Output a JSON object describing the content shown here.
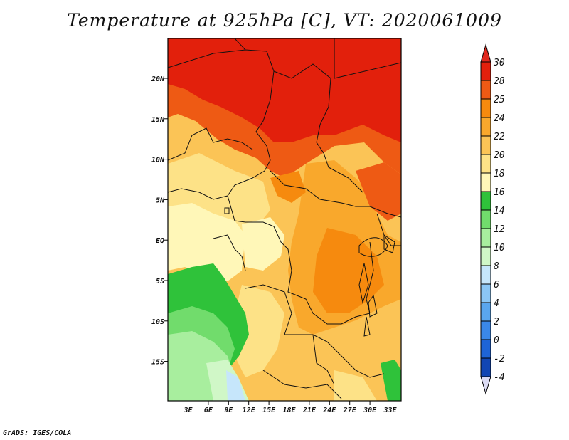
{
  "title": "Temperature at 925hPa [C], VT: 2020061009",
  "credit": "GrADS: IGES/COLA",
  "map": {
    "lat_labels": [
      "20N",
      "15N",
      "10N",
      "5N",
      "EQ",
      "5S",
      "10S",
      "15S"
    ],
    "lon_labels": [
      "3E",
      "6E",
      "9E",
      "12E",
      "15E",
      "18E",
      "21E",
      "24E",
      "27E",
      "30E",
      "33E"
    ]
  },
  "colorbar": {
    "levels": [
      "30",
      "28",
      "25",
      "24",
      "22",
      "20",
      "18",
      "16",
      "14",
      "12",
      "10",
      "8",
      "6",
      "4",
      "2",
      "0",
      "-2",
      "-4"
    ],
    "colors": {
      "top_triangle": "#e0281e",
      "bottom_triangle": "#dcdcf5",
      "bands": [
        "#e2200c",
        "#ee5a14",
        "#f68a0e",
        "#f9a82c",
        "#fbc456",
        "#fde287",
        "#fff7b8",
        "#2fc23a",
        "#71dc6c",
        "#a8ee9e",
        "#d0f7c7",
        "#c6e6fb",
        "#8bc6f5",
        "#5aa6ee",
        "#3a88e8",
        "#1e64d6",
        "#1146b4",
        "#0a2a8c",
        "#081a6a"
      ]
    }
  }
}
